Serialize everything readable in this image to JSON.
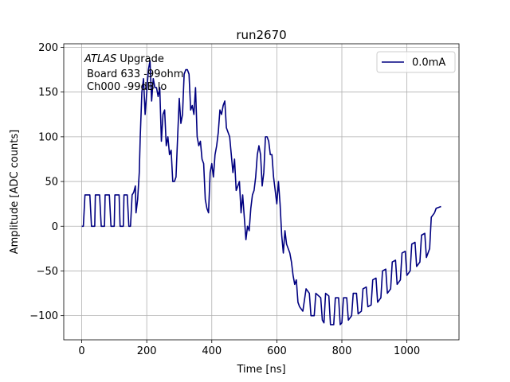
{
  "chart_data": {
    "type": "line",
    "title": "run2670",
    "xlabel": "Time [ns]",
    "ylabel": "Amplitude [ADC counts]",
    "annotation": {
      "italic": "ATLAS",
      "rest": "Upgrade",
      "lines": [
        "Board 633 -99ohm",
        "Ch000 -99dB lo"
      ]
    },
    "x": [
      0,
      5,
      10,
      20,
      25,
      30,
      40,
      42,
      55,
      60,
      70,
      72,
      85,
      90,
      100,
      102,
      115,
      118,
      128,
      130,
      140,
      145,
      150,
      155,
      160,
      165,
      167,
      172,
      177,
      180,
      185,
      190,
      195,
      200,
      205,
      210,
      215,
      220,
      225,
      230,
      235,
      240,
      245,
      250,
      255,
      260,
      265,
      270,
      275,
      280,
      285,
      290,
      295,
      300,
      305,
      310,
      315,
      320,
      325,
      330,
      335,
      340,
      345,
      350,
      355,
      360,
      365,
      370,
      375,
      380,
      385,
      390,
      395,
      400,
      405,
      410,
      415,
      420,
      425,
      430,
      435,
      440,
      445,
      450,
      455,
      460,
      465,
      470,
      475,
      480,
      485,
      490,
      495,
      500,
      505,
      510,
      515,
      520,
      525,
      530,
      535,
      540,
      545,
      550,
      555,
      560,
      565,
      570,
      575,
      580,
      585,
      590,
      595,
      600,
      605,
      610,
      615,
      620,
      625,
      630,
      635,
      640,
      645,
      650,
      655,
      660,
      665,
      670,
      680,
      690,
      700,
      705,
      715,
      720,
      735,
      740,
      745,
      750,
      760,
      765,
      775,
      780,
      790,
      795,
      800,
      805,
      815,
      820,
      830,
      835,
      845,
      850,
      860,
      865,
      875,
      880,
      890,
      895,
      905,
      910,
      920,
      925,
      935,
      940,
      950,
      955,
      965,
      970,
      980,
      985,
      995,
      1000,
      1010,
      1015,
      1025,
      1030,
      1040,
      1045,
      1055,
      1060,
      1070,
      1075,
      1085,
      1090,
      1105
    ],
    "series": [
      {
        "name": "0.0mA",
        "color": "#000080",
        "values": [
          0,
          0,
          35,
          35,
          35,
          0,
          0,
          35,
          35,
          0,
          0,
          35,
          35,
          0,
          0,
          35,
          35,
          0,
          0,
          35,
          35,
          0,
          0,
          35,
          38,
          45,
          15,
          30,
          60,
          100,
          150,
          165,
          125,
          150,
          175,
          185,
          140,
          165,
          155,
          155,
          145,
          155,
          95,
          125,
          130,
          90,
          100,
          80,
          85,
          50,
          50,
          55,
          100,
          143,
          115,
          125,
          170,
          175,
          175,
          170,
          130,
          135,
          125,
          155,
          100,
          90,
          95,
          75,
          70,
          30,
          20,
          15,
          60,
          70,
          55,
          80,
          90,
          105,
          130,
          125,
          135,
          140,
          110,
          105,
          100,
          80,
          60,
          75,
          40,
          45,
          50,
          15,
          35,
          10,
          -15,
          0,
          -5,
          20,
          35,
          40,
          55,
          80,
          90,
          80,
          45,
          60,
          100,
          100,
          95,
          80,
          80,
          55,
          40,
          25,
          50,
          25,
          -10,
          -30,
          -5,
          -20,
          -25,
          -30,
          -40,
          -55,
          -65,
          -60,
          -85,
          -90,
          -95,
          -70,
          -75,
          -100,
          -100,
          -75,
          -80,
          -105,
          -108,
          -75,
          -78,
          -110,
          -110,
          -80,
          -80,
          -110,
          -108,
          -80,
          -80,
          -105,
          -100,
          -75,
          -75,
          -98,
          -95,
          -70,
          -68,
          -90,
          -88,
          -60,
          -58,
          -85,
          -80,
          -50,
          -48,
          -75,
          -70,
          -40,
          -38,
          -65,
          -60,
          -30,
          -28,
          -55,
          -50,
          -20,
          -18,
          -45,
          -40,
          -10,
          -8,
          -35,
          -25,
          10,
          15,
          20,
          22
        ]
      }
    ],
    "xlim": [
      -55.25,
      1160.25
    ],
    "ylim": [
      -127,
      204
    ],
    "xticks": [
      0,
      200,
      400,
      600,
      800,
      1000
    ],
    "yticks": [
      {
        "value": -100,
        "label": "−100"
      },
      {
        "value": -50,
        "label": "−50"
      },
      0,
      50,
      100,
      150,
      200
    ],
    "grid": true,
    "legend": "upper right"
  }
}
